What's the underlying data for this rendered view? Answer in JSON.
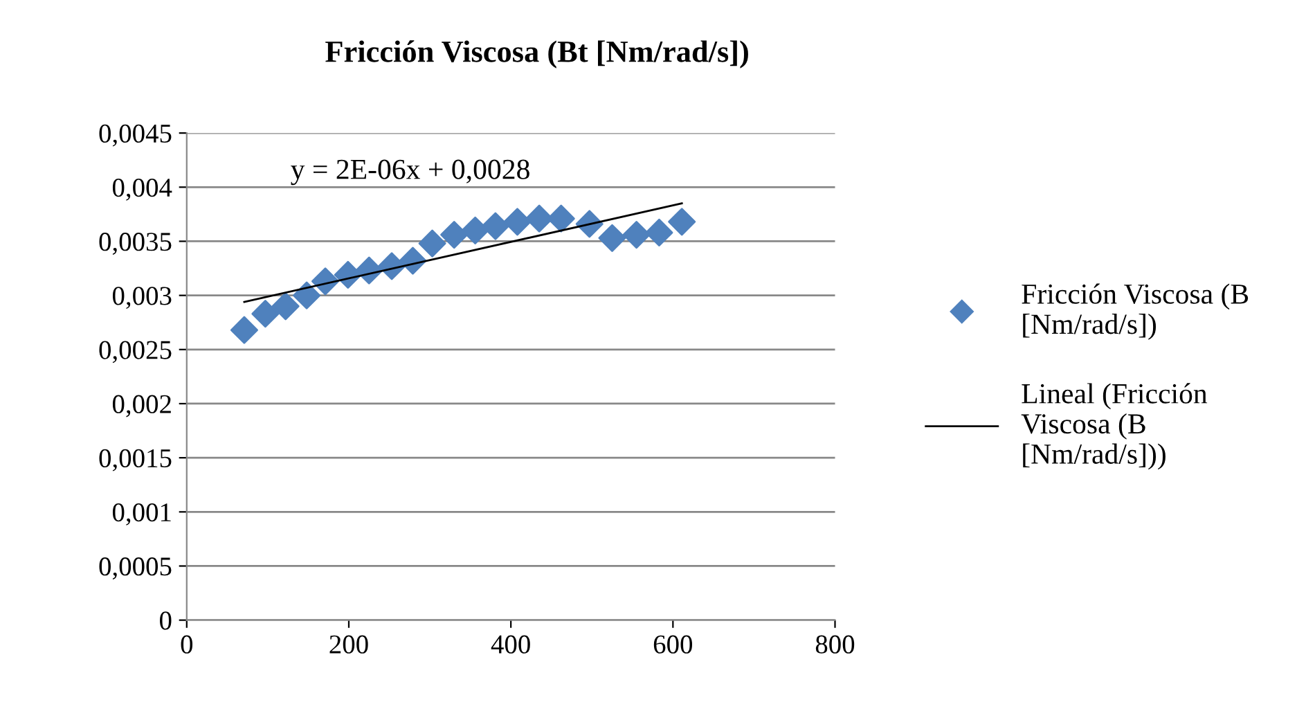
{
  "chart_data": {
    "type": "scatter",
    "title": "Fricción Viscosa (Bt [Nm/rad/s])",
    "series": [
      {
        "name": "Fricción Viscosa (B [Nm/rad/s])",
        "color": "#4f81bd",
        "marker": "diamond",
        "x": [
          71,
          97,
          122,
          148,
          171,
          199,
          225,
          253,
          279,
          303,
          330,
          356,
          381,
          408,
          435,
          462,
          497,
          525,
          555,
          583,
          611
        ],
        "values": [
          0.00268,
          0.00283,
          0.0029,
          0.003,
          0.00313,
          0.00319,
          0.00323,
          0.00327,
          0.00332,
          0.00348,
          0.00356,
          0.0036,
          0.00364,
          0.00368,
          0.00371,
          0.00371,
          0.00366,
          0.00353,
          0.00356,
          0.00358,
          0.00368
        ]
      },
      {
        "name": "Lineal (Fricción Viscosa (B [Nm/rad/s]))",
        "type": "line",
        "color": "#000000",
        "marker": "none",
        "x": [
          71,
          611
        ],
        "values": [
          0.00294,
          0.00385
        ]
      }
    ],
    "xlim": [
      0,
      800
    ],
    "xticks": [
      0,
      200,
      400,
      600,
      800
    ],
    "ylim": [
      0,
      0.0045
    ],
    "yticks": [
      {
        "value": 0,
        "label": "0"
      },
      {
        "value": 0.0005,
        "label": "0,0005"
      },
      {
        "value": 0.001,
        "label": "0,001"
      },
      {
        "value": 0.0015,
        "label": "0,0015"
      },
      {
        "value": 0.002,
        "label": "0,002"
      },
      {
        "value": 0.0025,
        "label": "0,0025"
      },
      {
        "value": 0.003,
        "label": "0,003"
      },
      {
        "value": 0.0035,
        "label": "0,0035"
      },
      {
        "value": 0.004,
        "label": "0,004"
      },
      {
        "value": 0.0045,
        "label": "0,0045"
      }
    ],
    "grid": "y",
    "legend": "right",
    "annotations": [
      "y = 2E-06x + 0,0028"
    ]
  }
}
